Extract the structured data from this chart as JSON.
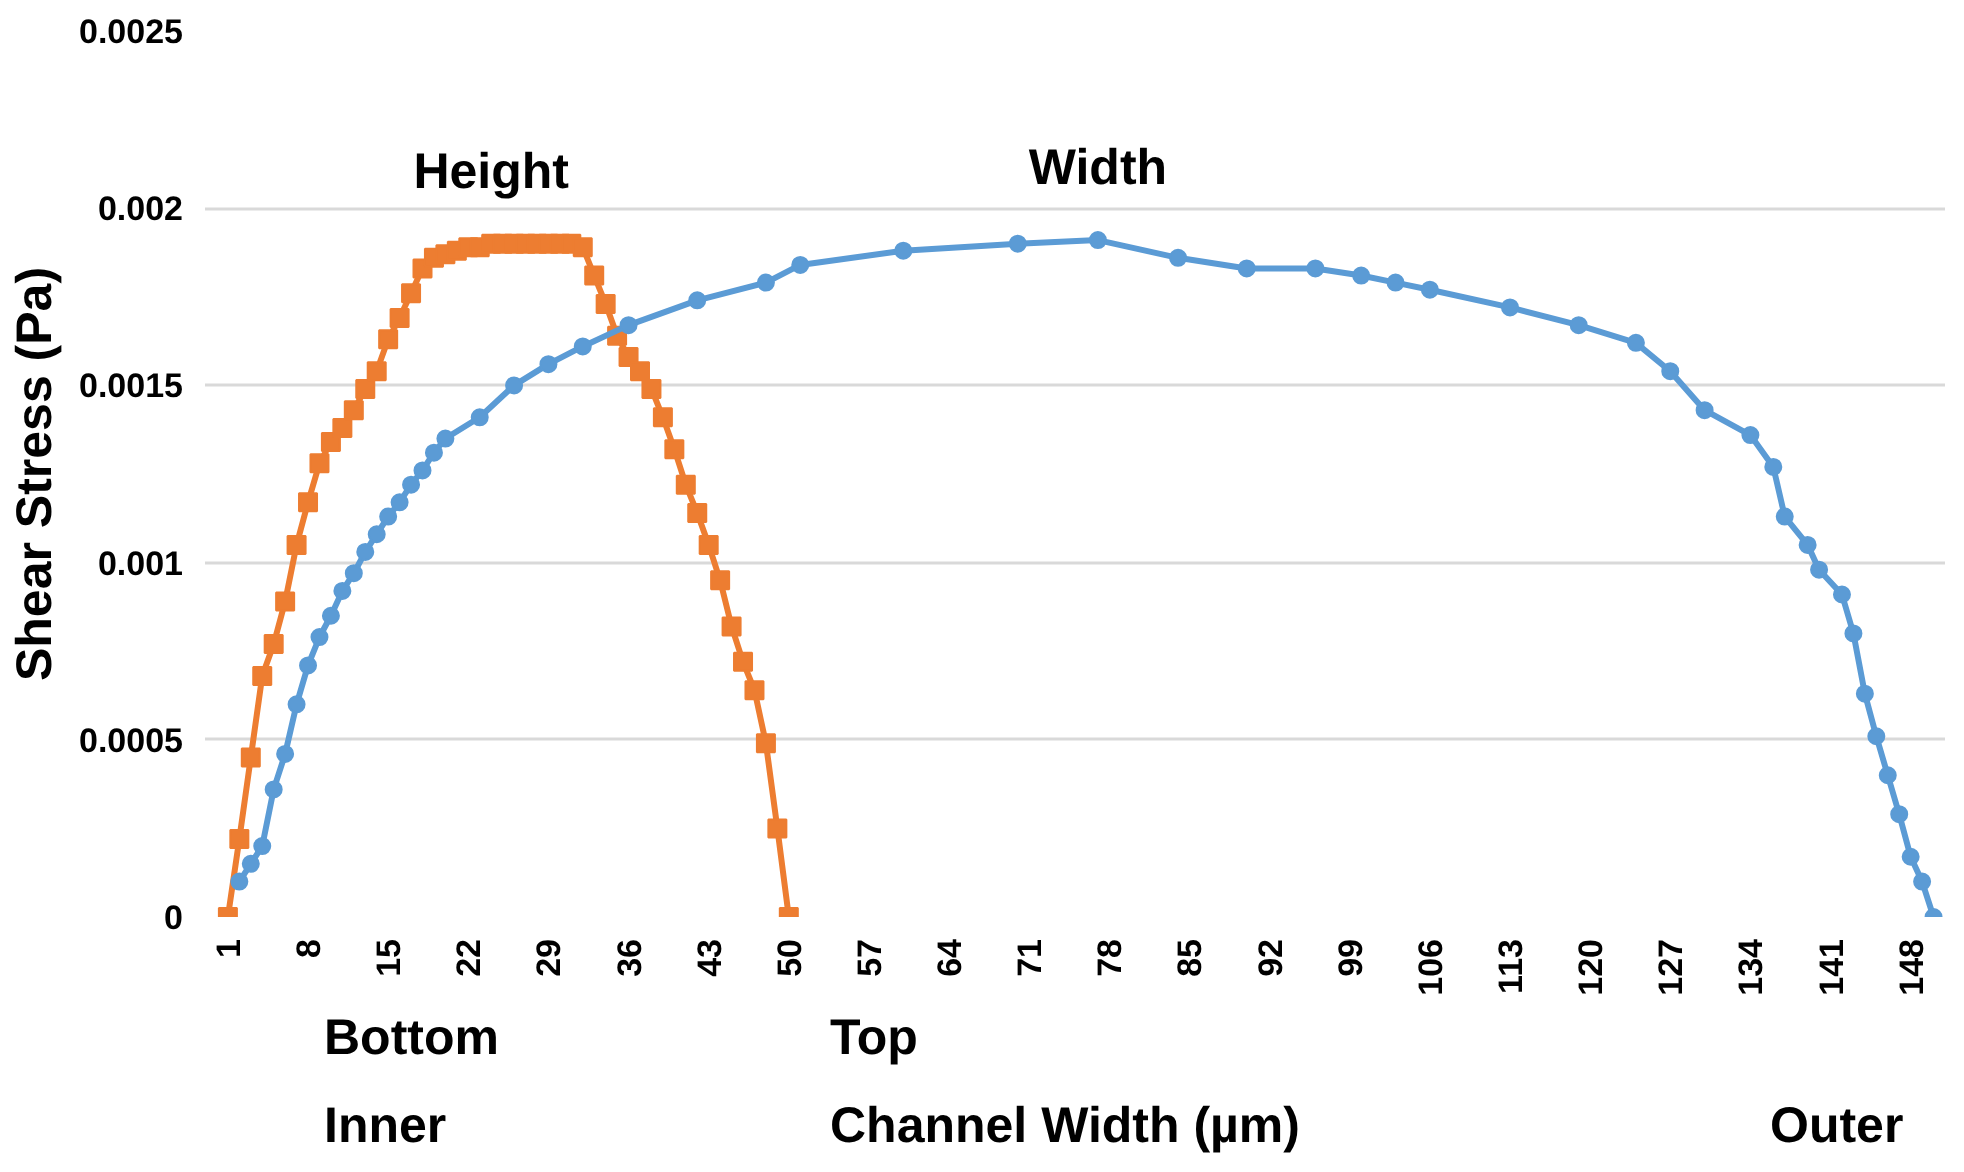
{
  "chart_data": {
    "type": "line",
    "xlabel": "Channel Width (µm)",
    "ylabel": "Shear Stress (Pa)",
    "xlim": [
      -1,
      151
    ],
    "ylim": [
      0,
      0.0025
    ],
    "xticks": [
      1,
      8,
      15,
      22,
      29,
      36,
      43,
      50,
      57,
      64,
      71,
      78,
      85,
      92,
      99,
      106,
      113,
      120,
      127,
      134,
      141,
      148
    ],
    "yticks": [
      0,
      0.0005,
      0.001,
      0.0015,
      0.002,
      0.0025
    ],
    "grid": "y",
    "annotations": [
      "Bottom",
      "Top",
      "Inner",
      "Outer"
    ],
    "series": [
      {
        "name": "Height",
        "color": "#ed7d31",
        "marker": "square",
        "x": [
          1,
          2,
          3,
          4,
          5,
          6,
          7,
          8,
          9,
          10,
          11,
          12,
          13,
          14,
          15,
          16,
          17,
          18,
          19,
          20,
          21,
          22,
          23,
          24,
          25,
          26,
          27,
          28,
          29,
          30,
          31,
          32,
          33,
          34,
          35,
          36,
          37,
          38,
          39,
          40,
          41,
          42,
          43,
          44,
          45,
          46,
          47,
          48,
          49,
          50
        ],
        "values": [
          0,
          0.00022,
          0.00045,
          0.00068,
          0.00077,
          0.00089,
          0.00105,
          0.00117,
          0.00128,
          0.00134,
          0.00138,
          0.00143,
          0.00149,
          0.00154,
          0.00163,
          0.00169,
          0.00176,
          0.00183,
          0.00186,
          0.00187,
          0.00188,
          0.00189,
          0.00189,
          0.0019,
          0.0019,
          0.0019,
          0.0019,
          0.0019,
          0.0019,
          0.0019,
          0.0019,
          0.00189,
          0.00181,
          0.00173,
          0.00164,
          0.00158,
          0.00154,
          0.00149,
          0.00141,
          0.00132,
          0.00122,
          0.00114,
          0.00105,
          0.00095,
          0.00082,
          0.00072,
          0.00064,
          0.00049,
          0.00025,
          0
        ]
      },
      {
        "name": "Width",
        "color": "#5b9bd5",
        "marker": "circle",
        "x": [
          2,
          3,
          4,
          5,
          6,
          7,
          8,
          9,
          10,
          11,
          12,
          13,
          14,
          15,
          16,
          17,
          18,
          19,
          20,
          23,
          26,
          29,
          32,
          36,
          42,
          48,
          51,
          60,
          70,
          77,
          84,
          90,
          96,
          100,
          103,
          106,
          113,
          119,
          124,
          127,
          130,
          134,
          136,
          137,
          139,
          140,
          142,
          143,
          144,
          145,
          146,
          147,
          148,
          149,
          150
        ],
        "values": [
          0.0001,
          0.00015,
          0.0002,
          0.00036,
          0.00046,
          0.0006,
          0.00071,
          0.00079,
          0.00085,
          0.00092,
          0.00097,
          0.00103,
          0.00108,
          0.00113,
          0.00117,
          0.00122,
          0.00126,
          0.00131,
          0.00135,
          0.00141,
          0.0015,
          0.00156,
          0.00161,
          0.00167,
          0.00174,
          0.00179,
          0.00184,
          0.00188,
          0.0019,
          0.00191,
          0.00186,
          0.00183,
          0.00183,
          0.00181,
          0.00179,
          0.00177,
          0.00172,
          0.00167,
          0.00162,
          0.00154,
          0.00143,
          0.00136,
          0.00127,
          0.00113,
          0.00105,
          0.00098,
          0.00091,
          0.0008,
          0.00063,
          0.00051,
          0.0004,
          0.00029,
          0.00017,
          0.0001,
          0
        ]
      }
    ]
  }
}
